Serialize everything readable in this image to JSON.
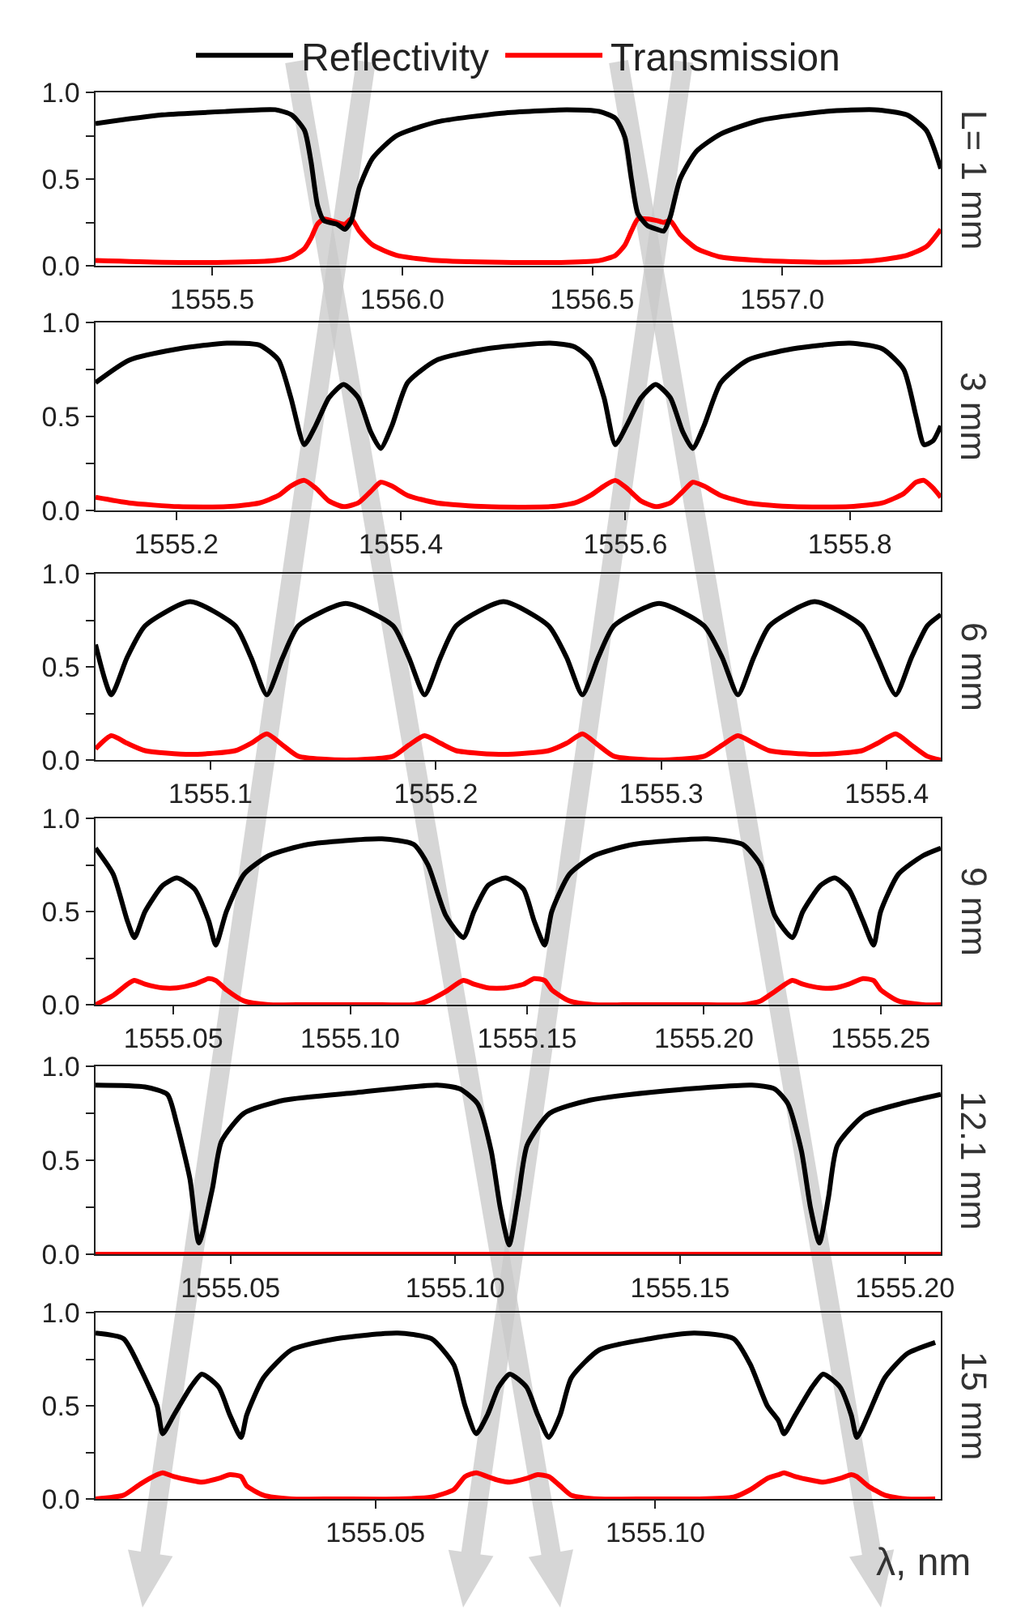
{
  "chart_data": [
    {
      "type": "line",
      "legend": "top",
      "annotations": [
        "L= 1 mm"
      ],
      "xlim": [
        1555.193,
        1557.417
      ],
      "xticks": [
        1555.5,
        {
          "value": 1556,
          "label": "1556.0"
        },
        1556.5,
        {
          "value": 1557,
          "label": "1557.0"
        }
      ],
      "ylim": [
        0,
        1
      ],
      "yticks": [
        {
          "value": 0,
          "label": "0.0"
        },
        {
          "value": 0.25,
          "label": null
        },
        {
          "value": 0.5,
          "label": "0.5"
        },
        {
          "value": 0.75,
          "label": null
        },
        {
          "value": 1,
          "label": "1.0"
        }
      ],
      "x": [
        1555.193,
        1555.368,
        1555.538,
        1555.666,
        1555.709,
        1555.743,
        1555.76,
        1555.777,
        1555.794,
        1555.828,
        1555.849,
        1555.866,
        1555.887,
        1555.922,
        1555.985,
        1556.092,
        1556.262,
        1556.433,
        1556.518,
        1556.561,
        1556.586,
        1556.603,
        1556.62,
        1556.646,
        1556.671,
        1556.688,
        1556.705,
        1556.731,
        1556.774,
        1556.838,
        1556.944,
        1557.115,
        1557.243,
        1557.328,
        1557.379,
        1557.417
      ],
      "series": [
        {
          "name": "Reflectivity",
          "color": "#000000",
          "values": [
            0.82,
            0.87,
            0.89,
            0.9,
            0.87,
            0.78,
            0.6,
            0.35,
            0.26,
            0.24,
            0.21,
            0.26,
            0.45,
            0.62,
            0.75,
            0.83,
            0.88,
            0.9,
            0.89,
            0.85,
            0.74,
            0.5,
            0.3,
            0.23,
            0.21,
            0.2,
            0.28,
            0.5,
            0.66,
            0.76,
            0.84,
            0.89,
            0.9,
            0.87,
            0.78,
            0.56
          ]
        },
        {
          "name": "Transmission",
          "color": "#ff0000",
          "values": [
            0.03,
            0.02,
            0.02,
            0.03,
            0.05,
            0.1,
            0.16,
            0.24,
            0.27,
            0.25,
            0.24,
            0.27,
            0.2,
            0.12,
            0.06,
            0.03,
            0.02,
            0.02,
            0.03,
            0.06,
            0.12,
            0.2,
            0.27,
            0.27,
            0.26,
            0.25,
            0.26,
            0.18,
            0.1,
            0.05,
            0.03,
            0.02,
            0.03,
            0.06,
            0.11,
            0.21
          ]
        }
      ]
    },
    {
      "type": "line",
      "annotations": [
        "3 mm"
      ],
      "xlim": [
        1555.128,
        1555.881
      ],
      "xticks": [
        1555.2,
        1555.4,
        1555.6,
        1555.8
      ],
      "ylim": [
        0,
        1
      ],
      "yticks": [
        {
          "value": 0,
          "label": "0.0"
        },
        {
          "value": 0.25,
          "label": null
        },
        {
          "value": 0.5,
          "label": "0.5"
        },
        {
          "value": 0.75,
          "label": null
        },
        {
          "value": 1,
          "label": "1.0"
        }
      ],
      "x": [
        1555.128,
        1555.158,
        1555.202,
        1555.245,
        1555.274,
        1555.291,
        1555.302,
        1555.314,
        1555.324,
        1555.336,
        1555.349,
        1555.362,
        1555.373,
        1555.382,
        1555.392,
        1555.406,
        1555.432,
        1555.476,
        1555.533,
        1555.555,
        1555.569,
        1555.581,
        1555.591,
        1555.601,
        1555.614,
        1555.627,
        1555.64,
        1555.651,
        1555.66,
        1555.67,
        1555.685,
        1555.709,
        1555.749,
        1555.8,
        1555.829,
        1555.848,
        1555.859,
        1555.866,
        1555.874,
        1555.881
      ],
      "series": [
        {
          "color": "#000000",
          "values": [
            0.68,
            0.8,
            0.86,
            0.89,
            0.88,
            0.8,
            0.6,
            0.35,
            0.45,
            0.6,
            0.67,
            0.6,
            0.42,
            0.33,
            0.45,
            0.68,
            0.8,
            0.86,
            0.89,
            0.87,
            0.8,
            0.6,
            0.35,
            0.45,
            0.6,
            0.67,
            0.6,
            0.42,
            0.33,
            0.45,
            0.68,
            0.8,
            0.86,
            0.89,
            0.86,
            0.75,
            0.5,
            0.35,
            0.37,
            0.45
          ]
        },
        {
          "color": "#ff0000",
          "values": [
            0.07,
            0.04,
            0.02,
            0.02,
            0.04,
            0.08,
            0.13,
            0.16,
            0.12,
            0.05,
            0.02,
            0.04,
            0.1,
            0.15,
            0.13,
            0.08,
            0.04,
            0.02,
            0.02,
            0.04,
            0.08,
            0.13,
            0.16,
            0.12,
            0.05,
            0.02,
            0.04,
            0.1,
            0.15,
            0.13,
            0.08,
            0.04,
            0.02,
            0.02,
            0.04,
            0.09,
            0.15,
            0.16,
            0.12,
            0.07
          ]
        }
      ]
    },
    {
      "type": "line",
      "annotations": [
        "6 mm"
      ],
      "xlim": [
        1555.049,
        1555.424
      ],
      "xticks": [
        1555.1,
        1555.2,
        1555.3,
        1555.4
      ],
      "ylim": [
        0,
        1
      ],
      "yticks": [
        {
          "value": 0,
          "label": "0.0"
        },
        {
          "value": 0.25,
          "label": null
        },
        {
          "value": 0.5,
          "label": "0.5"
        },
        {
          "value": 0.75,
          "label": null
        },
        {
          "value": 1,
          "label": "1.0"
        }
      ],
      "x": [
        1555.049,
        1555.056,
        1555.063,
        1555.071,
        1555.091,
        1555.111,
        1555.118,
        1555.125,
        1555.132,
        1555.139,
        1555.16,
        1555.181,
        1555.188,
        1555.195,
        1555.202,
        1555.209,
        1555.23,
        1555.25,
        1555.258,
        1555.265,
        1555.272,
        1555.279,
        1555.299,
        1555.319,
        1555.327,
        1555.334,
        1555.341,
        1555.348,
        1555.368,
        1555.389,
        1555.396,
        1555.404,
        1555.411,
        1555.418,
        1555.424
      ],
      "series": [
        {
          "color": "#000000",
          "values": [
            0.62,
            0.35,
            0.55,
            0.72,
            0.85,
            0.72,
            0.55,
            0.35,
            0.55,
            0.72,
            0.84,
            0.72,
            0.55,
            0.35,
            0.55,
            0.72,
            0.85,
            0.72,
            0.55,
            0.35,
            0.55,
            0.72,
            0.84,
            0.72,
            0.55,
            0.35,
            0.55,
            0.72,
            0.85,
            0.72,
            0.55,
            0.35,
            0.55,
            0.72,
            0.78
          ]
        },
        {
          "color": "#ff0000",
          "values": [
            0.06,
            0.13,
            0.09,
            0.05,
            0.03,
            0.05,
            0.09,
            0.14,
            0.08,
            0.02,
            0,
            0.02,
            0.08,
            0.13,
            0.09,
            0.05,
            0.03,
            0.05,
            0.09,
            0.14,
            0.08,
            0.02,
            0,
            0.02,
            0.08,
            0.13,
            0.09,
            0.05,
            0.03,
            0.05,
            0.09,
            0.14,
            0.08,
            0.02,
            0
          ]
        }
      ]
    },
    {
      "type": "line",
      "annotations": [
        "9 mm"
      ],
      "xlim": [
        1555.028,
        1555.267
      ],
      "xticks": [
        1555.05,
        {
          "value": 1555.1,
          "label": "1555.10"
        },
        1555.15,
        {
          "value": 1555.2,
          "label": "1555.20"
        },
        1555.25
      ],
      "ylim": [
        0,
        1
      ],
      "yticks": [
        {
          "value": 0,
          "label": "0.0"
        },
        {
          "value": 0.25,
          "label": null
        },
        {
          "value": 0.5,
          "label": "0.5"
        },
        {
          "value": 0.75,
          "label": null
        },
        {
          "value": 1,
          "label": "1.0"
        }
      ],
      "x": [
        1555.028,
        1555.033,
        1555.037,
        1555.039,
        1555.042,
        1555.047,
        1555.051,
        1555.056,
        1555.06,
        1555.062,
        1555.065,
        1555.07,
        1555.077,
        1555.088,
        1555.109,
        1555.118,
        1555.122,
        1555.127,
        1555.132,
        1555.135,
        1555.139,
        1555.144,
        1555.149,
        1555.152,
        1555.155,
        1555.157,
        1555.162,
        1555.169,
        1555.18,
        1555.201,
        1555.211,
        1555.216,
        1555.22,
        1555.225,
        1555.228,
        1555.233,
        1555.237,
        1555.241,
        1555.245,
        1555.248,
        1555.25,
        1555.255,
        1555.262,
        1555.267
      ],
      "series": [
        {
          "color": "#000000",
          "values": [
            0.84,
            0.7,
            0.45,
            0.36,
            0.5,
            0.64,
            0.68,
            0.62,
            0.45,
            0.32,
            0.5,
            0.7,
            0.8,
            0.86,
            0.89,
            0.86,
            0.75,
            0.48,
            0.36,
            0.5,
            0.64,
            0.68,
            0.62,
            0.45,
            0.32,
            0.5,
            0.7,
            0.8,
            0.86,
            0.89,
            0.86,
            0.75,
            0.48,
            0.36,
            0.5,
            0.64,
            0.68,
            0.62,
            0.45,
            0.32,
            0.5,
            0.7,
            0.8,
            0.84
          ]
        },
        {
          "color": "#ff0000",
          "values": [
            0,
            0.05,
            0.11,
            0.13,
            0.11,
            0.09,
            0.09,
            0.11,
            0.14,
            0.13,
            0.08,
            0.02,
            0,
            0,
            0,
            0,
            0.02,
            0.07,
            0.13,
            0.11,
            0.09,
            0.09,
            0.11,
            0.14,
            0.13,
            0.08,
            0.02,
            0,
            0,
            0,
            0,
            0.02,
            0.07,
            0.13,
            0.11,
            0.09,
            0.09,
            0.11,
            0.14,
            0.13,
            0.08,
            0.02,
            0,
            0
          ]
        }
      ]
    },
    {
      "type": "line",
      "annotations": [
        "12.1 mm"
      ],
      "xlim": [
        1555.02,
        1555.208
      ],
      "xticks": [
        1555.05,
        {
          "value": 1555.1,
          "label": "1555.10"
        },
        1555.15,
        {
          "value": 1555.2,
          "label": "1555.20"
        }
      ],
      "ylim": [
        0,
        1
      ],
      "yticks": [
        {
          "value": 0,
          "label": "0.0"
        },
        {
          "value": 0.25,
          "label": null
        },
        {
          "value": 0.5,
          "label": "0.5"
        },
        {
          "value": 0.75,
          "label": null
        },
        {
          "value": 1,
          "label": "1.0"
        }
      ],
      "x": [
        1555.02,
        1555.031,
        1555.036,
        1555.038,
        1555.041,
        1555.043,
        1555.046,
        1555.048,
        1555.053,
        1555.062,
        1555.078,
        1555.096,
        1555.101,
        1555.105,
        1555.108,
        1555.11,
        1555.112,
        1555.114,
        1555.116,
        1555.121,
        1555.13,
        1555.147,
        1555.166,
        1555.171,
        1555.174,
        1555.177,
        1555.179,
        1555.181,
        1555.183,
        1555.185,
        1555.191,
        1555.199,
        1555.208
      ],
      "series": [
        {
          "color": "#000000",
          "values": [
            0.9,
            0.89,
            0.85,
            0.7,
            0.4,
            0.06,
            0.35,
            0.6,
            0.75,
            0.82,
            0.86,
            0.9,
            0.88,
            0.8,
            0.55,
            0.25,
            0.05,
            0.3,
            0.58,
            0.75,
            0.82,
            0.87,
            0.9,
            0.88,
            0.8,
            0.55,
            0.25,
            0.06,
            0.3,
            0.58,
            0.74,
            0.8,
            0.85
          ]
        },
        {
          "color": "#ff0000",
          "values": [
            0,
            0,
            0,
            0,
            0,
            0,
            0,
            0,
            0,
            0,
            0,
            0,
            0,
            0,
            0,
            0,
            0,
            0,
            0,
            0,
            0,
            0,
            0,
            0,
            0,
            0,
            0,
            0,
            0,
            0,
            0,
            0,
            0
          ]
        }
      ]
    },
    {
      "type": "line",
      "annotations": [
        "15 mm"
      ],
      "xlabel": "λ, nm",
      "xlim": [
        1555.0,
        1555.151
      ],
      "xticks": [
        1555.05,
        {
          "value": 1555.1,
          "label": "1555.10"
        }
      ],
      "ylim": [
        0,
        1
      ],
      "yticks": [
        {
          "value": 0,
          "label": "0.0"
        },
        {
          "value": 0.25,
          "label": null
        },
        {
          "value": 0.5,
          "label": "0.5"
        },
        {
          "value": 0.75,
          "label": null
        },
        {
          "value": 1,
          "label": "1.0"
        }
      ],
      "x": [
        1555.0,
        1555.005,
        1555.008,
        1555.011,
        1555.012,
        1555.014,
        1555.017,
        1555.019,
        1555.022,
        1555.024,
        1555.026,
        1555.027,
        1555.03,
        1555.035,
        1555.043,
        1555.054,
        1555.06,
        1555.064,
        1555.066,
        1555.068,
        1555.07,
        1555.072,
        1555.074,
        1555.077,
        1555.079,
        1555.081,
        1555.083,
        1555.085,
        1555.09,
        1555.099,
        1555.107,
        1555.114,
        1555.117,
        1555.12,
        1555.122,
        1555.123,
        1555.125,
        1555.128,
        1555.13,
        1555.133,
        1555.135,
        1555.136,
        1555.138,
        1555.141,
        1555.145,
        1555.15
      ],
      "series": [
        {
          "color": "#000000",
          "values": [
            0.89,
            0.86,
            0.7,
            0.5,
            0.35,
            0.45,
            0.6,
            0.67,
            0.6,
            0.45,
            0.33,
            0.45,
            0.65,
            0.8,
            0.86,
            0.89,
            0.86,
            0.72,
            0.5,
            0.35,
            0.45,
            0.6,
            0.67,
            0.6,
            0.45,
            0.33,
            0.45,
            0.65,
            0.8,
            0.86,
            0.89,
            0.86,
            0.72,
            0.5,
            0.42,
            0.35,
            0.45,
            0.6,
            0.67,
            0.6,
            0.45,
            0.33,
            0.45,
            0.65,
            0.78,
            0.84
          ]
        },
        {
          "color": "#ff0000",
          "values": [
            0,
            0.02,
            0.08,
            0.13,
            0.14,
            0.12,
            0.1,
            0.09,
            0.11,
            0.13,
            0.12,
            0.07,
            0.02,
            0,
            0,
            0,
            0.01,
            0.05,
            0.12,
            0.14,
            0.12,
            0.1,
            0.09,
            0.11,
            0.13,
            0.12,
            0.07,
            0.02,
            0,
            0,
            0,
            0.01,
            0.05,
            0.11,
            0.13,
            0.14,
            0.12,
            0.1,
            0.09,
            0.11,
            0.13,
            0.12,
            0.07,
            0.02,
            0,
            0
          ]
        }
      ]
    }
  ]
}
